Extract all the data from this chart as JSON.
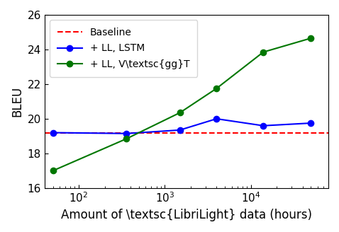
{
  "baseline_y": 19.2,
  "lstm_x": [
    50,
    360,
    1500,
    4000,
    14000,
    50000
  ],
  "lstm_y": [
    19.2,
    19.15,
    19.35,
    20.0,
    19.6,
    19.75
  ],
  "vggt_x": [
    50,
    360,
    1500,
    4000,
    14000,
    50000
  ],
  "vggt_y": [
    17.0,
    18.85,
    20.35,
    21.75,
    23.85,
    24.65
  ],
  "xlim": [
    40,
    80000
  ],
  "ylim": [
    16,
    26
  ],
  "yticks": [
    16,
    18,
    20,
    22,
    24,
    26
  ],
  "ylabel": "BLEU",
  "xlabel": "Amount of \\textsc{LibriLight} data (hours)",
  "baseline_color": "#ff0000",
  "lstm_color": "#0000ff",
  "vggt_color": "#007700",
  "legend_labels": [
    "Baseline",
    "+ LL, LSTM",
    "+ LL, V\\textsc{gg}T"
  ],
  "figsize": [
    4.78,
    3.28
  ],
  "dpi": 100
}
